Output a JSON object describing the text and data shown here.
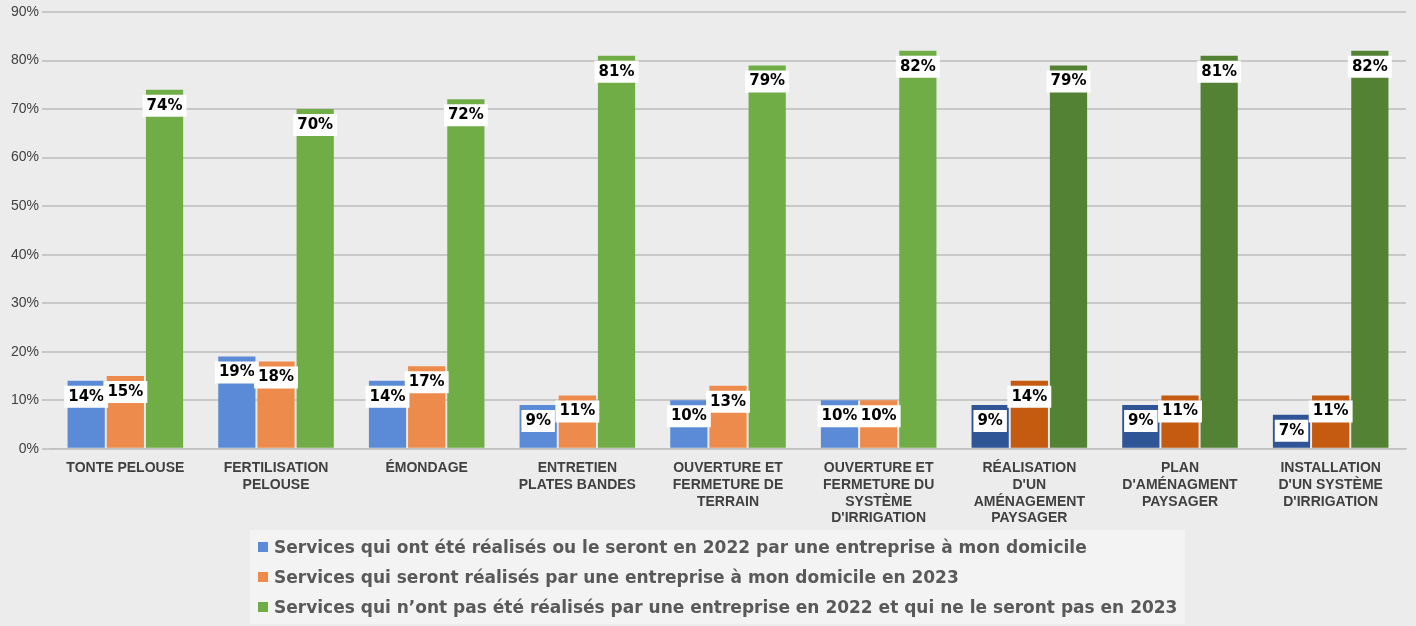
{
  "chart_data": {
    "type": "bar",
    "categories": [
      "TONTE PELOUSE",
      "FERTILISATION PELOUSE",
      "ÉMONDAGE",
      "ENTRETIEN PLATES BANDES",
      "OUVERTURE ET FERMETURE DE TERRAIN",
      "OUVERTURE ET FERMETURE DU SYSTÈME D'IRRIGATION",
      "RÉALISATION D'UN AMÉNAGEMENT PAYSAGER",
      "PLAN D'AMÉNAGMENT PAYSAGER",
      "INSTALLATION D'UN SYSTÈME D'IRRIGATION"
    ],
    "series": [
      {
        "name": "Services qui ont été réalisés ou le seront en 2022 par une entreprise à mon domicile",
        "color": "#5b8bd6",
        "colors": [
          "#5b8bd6",
          "#5b8bd6",
          "#5b8bd6",
          "#5b8bd6",
          "#5b8bd6",
          "#5b8bd6",
          "#2f5597",
          "#2f5597",
          "#2f5597"
        ],
        "values": [
          14,
          19,
          14,
          9,
          10,
          10,
          9,
          9,
          7
        ],
        "value_labels": [
          "14%",
          "19%",
          "14%",
          "9%",
          "10%",
          "10%",
          "9%",
          "9%",
          "7%"
        ]
      },
      {
        "name": "Services qui seront réalisés par une entreprise à mon domicile en 2023",
        "color": "#ed8b4c",
        "colors": [
          "#ed8b4c",
          "#ed8b4c",
          "#ed8b4c",
          "#ed8b4c",
          "#ed8b4c",
          "#ed8b4c",
          "#c55a11",
          "#c55a11",
          "#c55a11"
        ],
        "values": [
          15,
          18,
          17,
          11,
          13,
          10,
          14,
          11,
          11
        ],
        "value_labels": [
          "15%",
          "18%",
          "17%",
          "11%",
          "13%",
          "10%",
          "14%",
          "11%",
          "11%"
        ]
      },
      {
        "name": "Services qui n’ont pas été réalisés par une entreprise en 2022 et qui ne le seront pas en 2023",
        "color": "#70ad47",
        "colors": [
          "#70ad47",
          "#70ad47",
          "#70ad47",
          "#70ad47",
          "#70ad47",
          "#70ad47",
          "#548235",
          "#548235",
          "#548235"
        ],
        "values": [
          74,
          70,
          72,
          81,
          79,
          82,
          79,
          81,
          82
        ],
        "value_labels": [
          "74%",
          "70%",
          "72%",
          "81%",
          "79%",
          "82%",
          "79%",
          "81%",
          "82%"
        ]
      }
    ],
    "ylim": [
      0,
      90
    ],
    "yticks": [
      {
        "value": 0,
        "label": "0%"
      },
      {
        "value": 10,
        "label": "10%"
      },
      {
        "value": 20,
        "label": "20%"
      },
      {
        "value": 30,
        "label": "30%"
      },
      {
        "value": 40,
        "label": "40%"
      },
      {
        "value": 50,
        "label": "50%"
      },
      {
        "value": 60,
        "label": "60%"
      },
      {
        "value": 70,
        "label": "70%"
      },
      {
        "value": 80,
        "label": "80%"
      },
      {
        "value": 90,
        "label": "90%"
      }
    ],
    "grid": "y",
    "legend": "bottom"
  }
}
